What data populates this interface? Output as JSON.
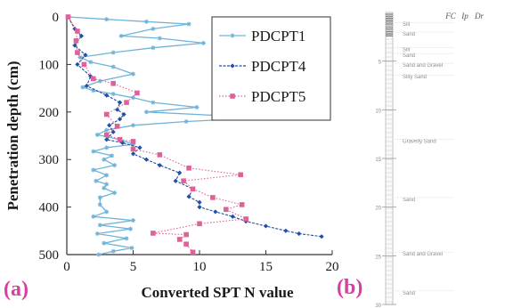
{
  "panel_labels": {
    "a": "(a)",
    "b": "(b)"
  },
  "chart_data": {
    "type": "line",
    "xlabel": "Converted SPT N value",
    "ylabel": "Penetration depth (cm)",
    "xlim": [
      0,
      20
    ],
    "ylim": [
      0,
      500
    ],
    "y_inverted": true,
    "xticks": [
      0,
      5,
      10,
      15,
      20
    ],
    "yticks": [
      0,
      100,
      200,
      300,
      400,
      500
    ],
    "legend_position": "top-right",
    "series": [
      {
        "name": "PDCPT1",
        "color": "#6fb3d9",
        "marker": "star",
        "points": [
          [
            0.1,
            0
          ],
          [
            3.0,
            5
          ],
          [
            6.0,
            10
          ],
          [
            9.2,
            15
          ],
          [
            6.5,
            25
          ],
          [
            4.1,
            40
          ],
          [
            7.0,
            45
          ],
          [
            10.3,
            55
          ],
          [
            6.5,
            65
          ],
          [
            3.5,
            75
          ],
          [
            1.0,
            85
          ],
          [
            1.8,
            95
          ],
          [
            3.5,
            105
          ],
          [
            5.0,
            120
          ],
          [
            2.5,
            135
          ],
          [
            1.2,
            148
          ],
          [
            2.0,
            155
          ],
          [
            3.5,
            162
          ],
          [
            5.0,
            170
          ],
          [
            6.5,
            180
          ],
          [
            9.8,
            190
          ],
          [
            6.0,
            200
          ],
          [
            14.8,
            212
          ],
          [
            9.0,
            220
          ],
          [
            5.0,
            228
          ],
          [
            3.0,
            238
          ],
          [
            2.3,
            248
          ],
          [
            4.0,
            258
          ],
          [
            5.0,
            268
          ],
          [
            3.0,
            275
          ],
          [
            2.0,
            283
          ],
          [
            3.4,
            292
          ],
          [
            2.8,
            300
          ],
          [
            3.6,
            312
          ],
          [
            2.0,
            322
          ],
          [
            3.0,
            333
          ],
          [
            2.2,
            345
          ],
          [
            3.0,
            352
          ],
          [
            2.8,
            360
          ],
          [
            3.6,
            370
          ],
          [
            2.5,
            380
          ],
          [
            2.5,
            395
          ],
          [
            3.0,
            410
          ],
          [
            2.0,
            420
          ],
          [
            5.0,
            428
          ],
          [
            2.5,
            438
          ],
          [
            4.8,
            446
          ],
          [
            2.3,
            456
          ],
          [
            4.5,
            466
          ],
          [
            2.8,
            476
          ],
          [
            4.9,
            486
          ],
          [
            3.5,
            493
          ],
          [
            2.4,
            500
          ]
        ]
      },
      {
        "name": "PDCPT4",
        "color": "#1f4fa8",
        "marker": "diamond",
        "points": [
          [
            0.1,
            0
          ],
          [
            0.6,
            25
          ],
          [
            1.1,
            40
          ],
          [
            0.6,
            60
          ],
          [
            1.4,
            80
          ],
          [
            0.8,
            100
          ],
          [
            1.8,
            125
          ],
          [
            1.5,
            145
          ],
          [
            3.0,
            165
          ],
          [
            4.0,
            180
          ],
          [
            3.8,
            195
          ],
          [
            4.3,
            205
          ],
          [
            4.0,
            215
          ],
          [
            3.2,
            228
          ],
          [
            3.5,
            242
          ],
          [
            3.0,
            258
          ],
          [
            4.2,
            265
          ],
          [
            5.5,
            275
          ],
          [
            5.0,
            288
          ],
          [
            6.0,
            300
          ],
          [
            7.0,
            312
          ],
          [
            8.5,
            328
          ],
          [
            8.2,
            345
          ],
          [
            9.5,
            362
          ],
          [
            9.2,
            378
          ],
          [
            10.0,
            390
          ],
          [
            10.0,
            400
          ],
          [
            11.2,
            410
          ],
          [
            12.5,
            420
          ],
          [
            13.5,
            430
          ],
          [
            15.0,
            440
          ],
          [
            16.5,
            450
          ],
          [
            17.5,
            456
          ],
          [
            19.2,
            462
          ]
        ]
      },
      {
        "name": "PDCPT5",
        "color": "#e0609a",
        "marker": "square",
        "points": [
          [
            0.1,
            0
          ],
          [
            0.8,
            30
          ],
          [
            0.7,
            50
          ],
          [
            0.8,
            75
          ],
          [
            1.3,
            100
          ],
          [
            2.0,
            130
          ],
          [
            3.5,
            140
          ],
          [
            5.3,
            160
          ],
          [
            4.5,
            180
          ],
          [
            3.0,
            205
          ],
          [
            3.8,
            230
          ],
          [
            3.0,
            248
          ],
          [
            4.0,
            258
          ],
          [
            5.0,
            262
          ],
          [
            5.0,
            278
          ],
          [
            7.0,
            290
          ],
          [
            9.2,
            318
          ],
          [
            13.1,
            332
          ],
          [
            8.8,
            345
          ],
          [
            9.5,
            362
          ],
          [
            11.0,
            380
          ],
          [
            13.2,
            395
          ],
          [
            12.0,
            405
          ],
          [
            13.5,
            425
          ],
          [
            10.0,
            435
          ],
          [
            6.5,
            455
          ],
          [
            9.0,
            458
          ],
          [
            8.5,
            468
          ],
          [
            9.0,
            478
          ],
          [
            9.5,
            495
          ]
        ]
      }
    ]
  },
  "soil_log": {
    "headers": [
      "FC",
      "Ip",
      "Dr"
    ],
    "soil_types": [
      {
        "name": "Silt",
        "depth": 1.2
      },
      {
        "name": "Sand",
        "depth": 2.2
      },
      {
        "name": "Silt",
        "depth": 3.8
      },
      {
        "name": "Sand",
        "depth": 4.4
      },
      {
        "name": "Sand and Gravel",
        "depth": 5.4
      },
      {
        "name": "Silty Sand",
        "depth": 6.6
      },
      {
        "name": "Gravelly Sand",
        "depth": 13.2
      },
      {
        "name": "Sand",
        "depth": 19.2
      },
      {
        "name": "Sand and Gravel",
        "depth": 24.8
      },
      {
        "name": "Sand",
        "depth": 28.8
      }
    ],
    "depth_ticks": [
      "5",
      "10",
      "15",
      "20",
      "25",
      "30"
    ]
  }
}
